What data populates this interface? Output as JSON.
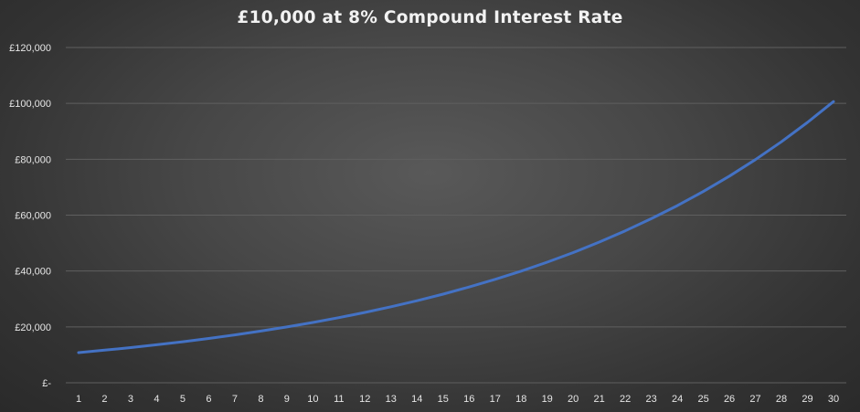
{
  "chart_data": {
    "type": "line",
    "title": "£10,000 at 8% Compound  Interest Rate",
    "xlabel": "",
    "ylabel": "",
    "categories": [
      "1",
      "2",
      "3",
      "4",
      "5",
      "6",
      "7",
      "8",
      "9",
      "10",
      "11",
      "12",
      "13",
      "14",
      "15",
      "16",
      "17",
      "18",
      "19",
      "20",
      "21",
      "22",
      "23",
      "24",
      "25",
      "26",
      "27",
      "28",
      "29",
      "30"
    ],
    "series": [
      {
        "values": [
          10800,
          11664,
          12597,
          13605,
          14693,
          15869,
          17138,
          18509,
          19990,
          21589,
          23316,
          25182,
          27196,
          29372,
          31722,
          34259,
          37000,
          39960,
          43157,
          46610,
          50338,
          54365,
          58715,
          63412,
          68485,
          73964,
          79881,
          86271,
          93173,
          100627
        ]
      }
    ],
    "ylim": [
      0,
      120000
    ],
    "y_ticks": [
      {
        "value": 0,
        "label": "£-"
      },
      {
        "value": 20000,
        "label": "£20,000"
      },
      {
        "value": 40000,
        "label": "£40,000"
      },
      {
        "value": 60000,
        "label": "£60,000"
      },
      {
        "value": 80000,
        "label": "£80,000"
      },
      {
        "value": 100000,
        "label": "£100,000"
      },
      {
        "value": 120000,
        "label": "£120,000"
      }
    ],
    "grid": true,
    "legend": "none",
    "colors": {
      "line": "#4472C4",
      "gridline": "#5f5f5f",
      "text": "#e6e6e6",
      "title": "#f2f2f2"
    }
  }
}
